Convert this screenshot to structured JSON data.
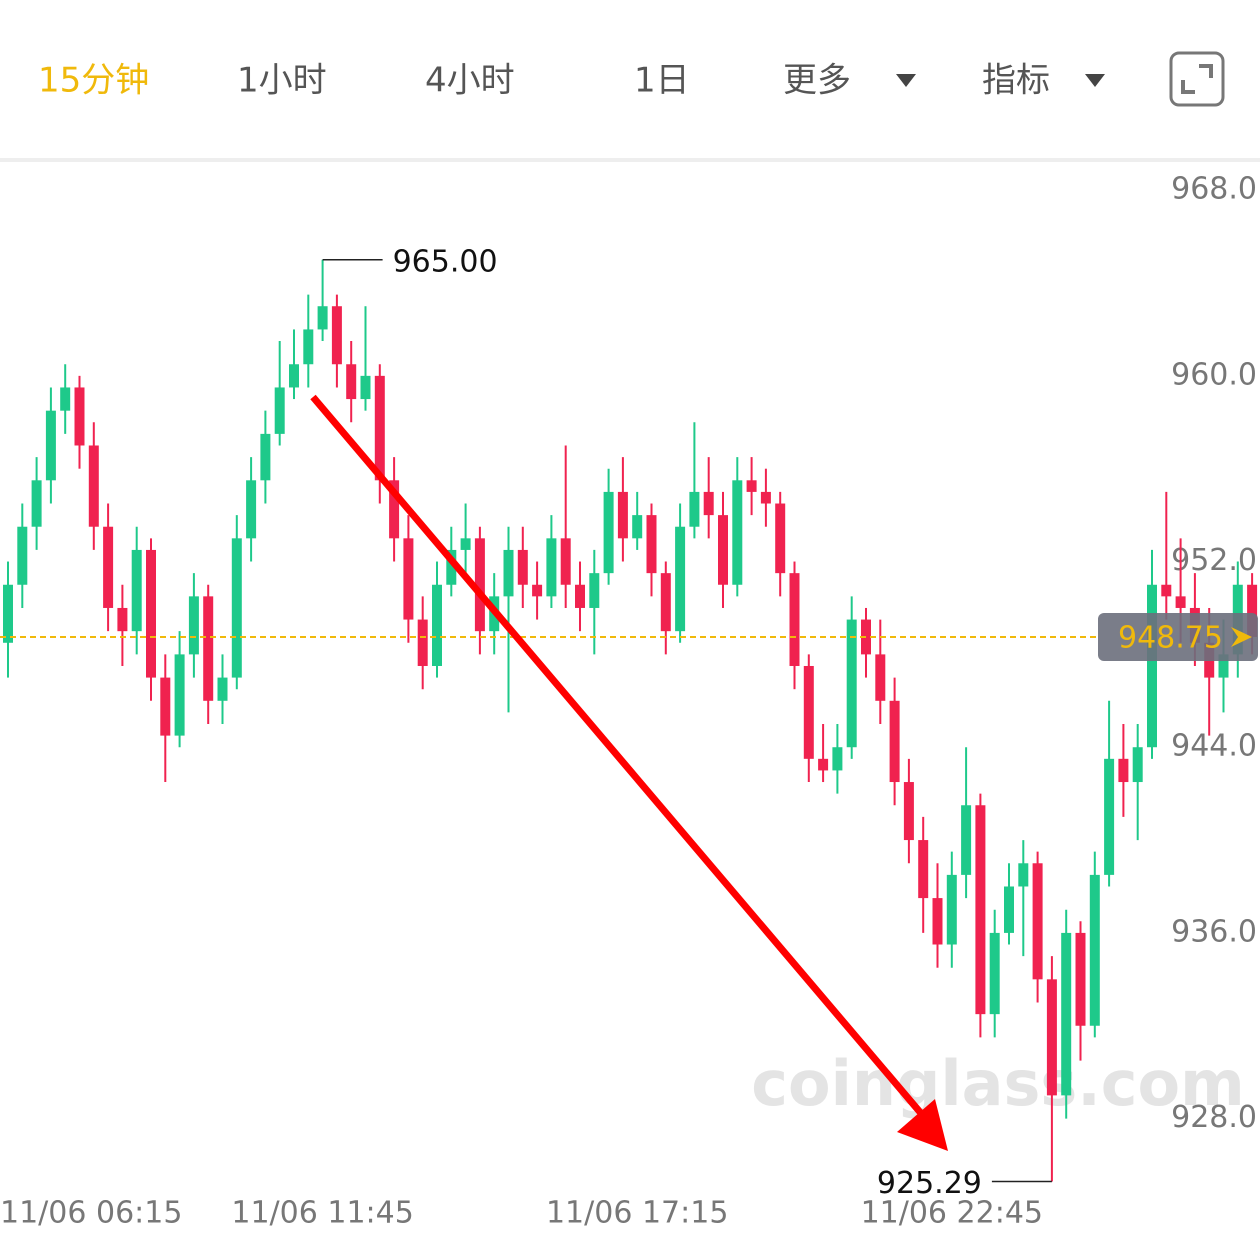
{
  "tabs": [
    "15分钟",
    "1小时",
    "4小时",
    "1日",
    "更多",
    "指标"
  ],
  "chart_data": {
    "type": "candlestick",
    "watermark": "coinglass.com",
    "up_color": "#1ec98a",
    "down_color": "#f0224f",
    "ylim": [
      923.2,
      969.3
    ],
    "yticks": [
      {
        "value": 968,
        "label": "968.0"
      },
      {
        "value": 960,
        "label": "960.0"
      },
      {
        "value": 952,
        "label": "952.0"
      },
      {
        "value": 944,
        "label": "944.0"
      },
      {
        "value": 936,
        "label": "936.0"
      },
      {
        "value": 928,
        "label": "928.0"
      }
    ],
    "categories": [
      "11/06 06:15",
      null,
      null,
      null,
      null,
      null,
      null,
      null,
      null,
      null,
      null,
      null,
      null,
      null,
      null,
      null,
      null,
      null,
      null,
      null,
      null,
      null,
      "11/06 11:45",
      null,
      null,
      null,
      null,
      null,
      null,
      null,
      null,
      null,
      null,
      null,
      null,
      null,
      null,
      null,
      null,
      null,
      null,
      null,
      null,
      null,
      "11/06 17:15",
      null,
      null,
      null,
      null,
      null,
      null,
      null,
      null,
      null,
      null,
      null,
      null,
      null,
      null,
      null,
      null,
      null,
      null,
      null,
      null,
      null,
      "11/06 22:45",
      null,
      null,
      null,
      null,
      null,
      null,
      null,
      null,
      null,
      null,
      null,
      null,
      null,
      null,
      null,
      null,
      null,
      null,
      null,
      null,
      null
    ],
    "open": [
      948.5,
      951,
      953.5,
      955.5,
      958.5,
      959.5,
      957,
      953.5,
      950,
      949,
      952.5,
      947,
      944.5,
      948,
      950.5,
      946,
      947,
      953,
      955.5,
      957.5,
      959.5,
      960.5,
      962,
      963,
      960.5,
      959,
      960,
      955.5,
      953,
      949.5,
      947.5,
      951,
      952.5,
      953,
      949,
      950.5,
      952.5,
      951,
      950.5,
      953,
      951,
      950,
      951.5,
      955,
      953,
      954,
      951.5,
      949,
      953.5,
      955,
      954,
      951,
      955.5,
      955,
      954.5,
      951.5,
      947.5,
      943.5,
      943,
      944,
      949.5,
      948,
      946,
      942.5,
      940,
      937.5,
      935.5,
      938.5,
      941.5,
      932.5,
      936,
      938,
      939,
      934,
      929,
      936,
      932,
      938.5,
      943.5,
      942.5,
      944,
      951,
      950.5,
      950,
      948.5,
      947,
      948,
      951
    ],
    "high": [
      952,
      954.5,
      956.5,
      959.5,
      960.5,
      960,
      958,
      954.5,
      951,
      953.5,
      953,
      948,
      949,
      951.5,
      951,
      948,
      954,
      956.5,
      958.5,
      961.5,
      962,
      963.5,
      965,
      963.5,
      961.5,
      963,
      960.5,
      956.5,
      954,
      950.5,
      952,
      953.5,
      954.5,
      953.5,
      951.5,
      953.5,
      953.5,
      952,
      954,
      957,
      952,
      952.5,
      956,
      956.5,
      955,
      954.5,
      952,
      954.5,
      958,
      956.5,
      955,
      956.5,
      956.5,
      956,
      955,
      952,
      948,
      945,
      945,
      950.5,
      950,
      949.5,
      947,
      943.5,
      941,
      939,
      939.5,
      944,
      942,
      937,
      939,
      940,
      939.5,
      935,
      937,
      936.5,
      939.5,
      946,
      945,
      945,
      952.5,
      955,
      953,
      951.5,
      950,
      949.5,
      952,
      951.5
    ],
    "low": [
      947,
      950,
      952.5,
      954.5,
      957.5,
      956,
      952.5,
      949,
      947.5,
      948,
      946,
      942.5,
      944,
      947,
      945,
      945,
      946.5,
      952,
      954.5,
      957,
      959,
      959.5,
      961.5,
      959.5,
      958,
      958.5,
      954.5,
      952,
      948.5,
      946.5,
      947,
      950.5,
      951.5,
      948,
      948,
      945.5,
      950,
      949.5,
      950,
      950,
      949,
      948,
      951,
      952,
      952.5,
      950.5,
      948,
      948.5,
      953,
      953,
      950,
      950.5,
      954,
      953.5,
      950.5,
      946.5,
      942.5,
      942.5,
      942,
      943.5,
      947,
      945,
      941.5,
      939,
      936,
      934.5,
      934.5,
      937.5,
      931.5,
      931.5,
      935.5,
      935,
      933,
      925.29,
      928,
      930.5,
      931.5,
      938,
      941,
      940,
      943.5,
      949.5,
      948.5,
      947.5,
      944.5,
      945.5,
      947,
      948
    ],
    "close": [
      951,
      953.5,
      955.5,
      958.5,
      959.5,
      957,
      953.5,
      950,
      949,
      952.5,
      947,
      944.5,
      948,
      950.5,
      946,
      947,
      953,
      955.5,
      957.5,
      959.5,
      960.5,
      962,
      963,
      960.5,
      959,
      960,
      955.5,
      953,
      949.5,
      947.5,
      951,
      952.5,
      953,
      949,
      950.5,
      952.5,
      951,
      950.5,
      953,
      951,
      950,
      951.5,
      955,
      953,
      954,
      951.5,
      949,
      953.5,
      955,
      954,
      951,
      955.5,
      955,
      954.5,
      951.5,
      947.5,
      943.5,
      943,
      944,
      949.5,
      948,
      946,
      942.5,
      940,
      937.5,
      935.5,
      938.5,
      941.5,
      932.5,
      936,
      938,
      939,
      934,
      929,
      936,
      932,
      938.5,
      943.5,
      942.5,
      944,
      951,
      950.5,
      950,
      948.5,
      947,
      948,
      951,
      948.75
    ],
    "max_label": {
      "value": 965,
      "label": "965.00"
    },
    "min_label": 925.29,
    "last_price": 948.75
  }
}
